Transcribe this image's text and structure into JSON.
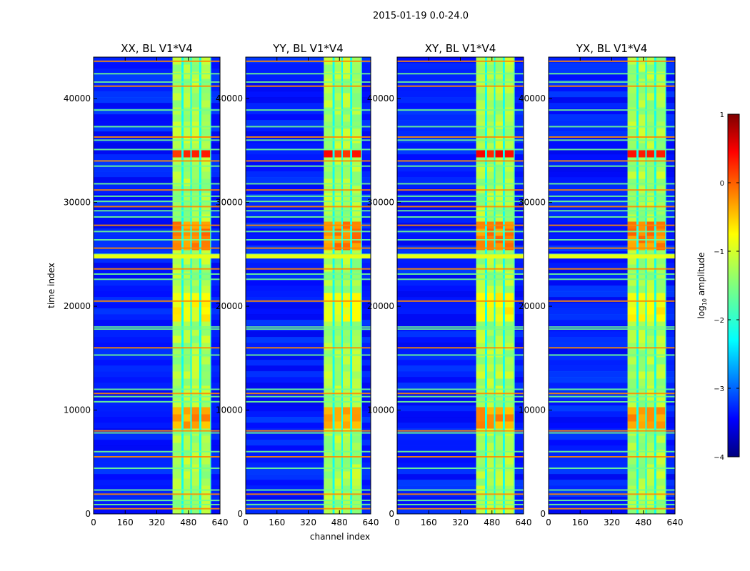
{
  "chart_data": {
    "type": "heatmap",
    "suptitle": "2015-01-19 0.0-24.0",
    "xlabel": "channel index",
    "ylabel": "time index",
    "xlim": [
      0,
      640
    ],
    "ylim": [
      0,
      44000
    ],
    "x_ticks": [
      {
        "value": 0,
        "label": "0"
      },
      {
        "value": 160,
        "label": "160"
      },
      {
        "value": 320,
        "label": "320"
      },
      {
        "value": 480,
        "label": "480"
      },
      {
        "value": 640,
        "label": "640"
      }
    ],
    "y_ticks": [
      {
        "value": 0,
        "label": "0"
      },
      {
        "value": 10000,
        "label": "10000"
      },
      {
        "value": 20000,
        "label": "20000"
      },
      {
        "value": 30000,
        "label": "30000"
      },
      {
        "value": 40000,
        "label": "40000"
      }
    ],
    "panels": [
      {
        "title": "XX, BL V1*V4"
      },
      {
        "title": "YY, BL V1*V4"
      },
      {
        "title": "XY, BL V1*V4"
      },
      {
        "title": "YX, BL V1*V4"
      }
    ],
    "colorbar": {
      "label_prefix": "log",
      "label_sub": "10",
      "label_suffix": " amplitude",
      "range": [
        -4,
        1
      ],
      "ticks": [
        {
          "value": 1,
          "label": "1"
        },
        {
          "value": 0,
          "label": "0"
        },
        {
          "value": -1,
          "label": "−1"
        },
        {
          "value": -2,
          "label": "−2"
        },
        {
          "value": -3,
          "label": "−3"
        },
        {
          "value": -4,
          "label": "−4"
        }
      ],
      "colors": [
        "#00007f",
        "#0000ff",
        "#007fff",
        "#00ffff",
        "#7fff7f",
        "#ffff00",
        "#ff7f00",
        "#ff0000",
        "#7f0000"
      ]
    },
    "signal_band_channels": [
      400,
      595
    ],
    "signal_columns_channels": [
      {
        "start": 400,
        "end": 445
      },
      {
        "start": 455,
        "end": 490
      },
      {
        "start": 497,
        "end": 535
      },
      {
        "start": 545,
        "end": 590
      }
    ],
    "rfi_time_rows": [
      500,
      900,
      1300,
      1900,
      2300,
      4400,
      5500,
      6000,
      7800,
      8000,
      10800,
      11300,
      11600,
      12000,
      15300,
      16000,
      17800,
      18000,
      20500,
      22600,
      23100,
      23600,
      24700,
      25000,
      25600,
      26400,
      27200,
      27800,
      28600,
      29200,
      29600,
      30100,
      30600,
      31200,
      31800,
      33500,
      34000,
      35100,
      36000,
      36300,
      37300,
      38900,
      41200,
      41600,
      42400,
      43600
    ],
    "bright_time_ranges": [
      {
        "start": 8500,
        "end": 10500,
        "level": -0.3
      },
      {
        "start": 34200,
        "end": 35000,
        "level": 0.3
      },
      {
        "start": 25500,
        "end": 28000,
        "level": -0.2
      },
      {
        "start": 18500,
        "end": 21000,
        "level": -0.8
      }
    ]
  }
}
